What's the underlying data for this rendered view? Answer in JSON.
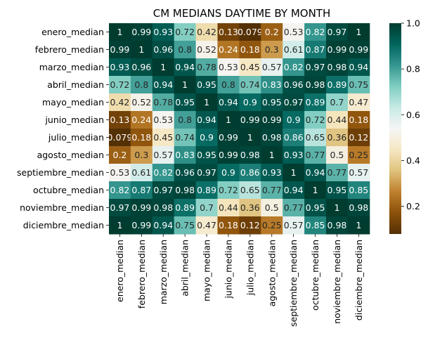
{
  "chart_data": {
    "type": "heatmap",
    "title": "CM MEDIANS DAYTIME BY MONTH",
    "xlabel": "",
    "ylabel": "",
    "labels": [
      "enero_median",
      "febrero_median",
      "marzo_median",
      "abril_median",
      "mayo_median",
      "junio_median",
      "julio_median",
      "agosto_median",
      "septiembre_median",
      "octubre_median",
      "noviembre_median",
      "diciembre_median"
    ],
    "matrix": [
      [
        1,
        0.99,
        0.93,
        0.72,
        0.42,
        0.13,
        0.079,
        0.2,
        0.53,
        0.82,
        0.97,
        1
      ],
      [
        0.99,
        1,
        0.96,
        0.8,
        0.52,
        0.24,
        0.18,
        0.3,
        0.61,
        0.87,
        0.99,
        0.99
      ],
      [
        0.93,
        0.96,
        1,
        0.94,
        0.78,
        0.53,
        0.45,
        0.57,
        0.82,
        0.97,
        0.98,
        0.94
      ],
      [
        0.72,
        0.8,
        0.94,
        1,
        0.95,
        0.8,
        0.74,
        0.83,
        0.96,
        0.98,
        0.89,
        0.75
      ],
      [
        0.42,
        0.52,
        0.78,
        0.95,
        1,
        0.94,
        0.9,
        0.95,
        0.97,
        0.89,
        0.7,
        0.47
      ],
      [
        0.13,
        0.24,
        0.53,
        0.8,
        0.94,
        1,
        0.99,
        0.99,
        0.9,
        0.72,
        0.44,
        0.18
      ],
      [
        0.079,
        0.18,
        0.45,
        0.74,
        0.9,
        0.99,
        1,
        0.98,
        0.86,
        0.65,
        0.36,
        0.12
      ],
      [
        0.2,
        0.3,
        0.57,
        0.83,
        0.95,
        0.99,
        0.98,
        1,
        0.93,
        0.77,
        0.5,
        0.25
      ],
      [
        0.53,
        0.61,
        0.82,
        0.96,
        0.97,
        0.9,
        0.86,
        0.93,
        1,
        0.94,
        0.77,
        0.57
      ],
      [
        0.82,
        0.87,
        0.97,
        0.98,
        0.89,
        0.72,
        0.65,
        0.77,
        0.94,
        1,
        0.95,
        0.85
      ],
      [
        0.97,
        0.99,
        0.98,
        0.89,
        0.7,
        0.44,
        0.36,
        0.5,
        0.77,
        0.95,
        1,
        0.98
      ],
      [
        1,
        0.99,
        0.94,
        0.75,
        0.47,
        0.18,
        0.12,
        0.25,
        0.57,
        0.85,
        0.98,
        1
      ]
    ],
    "colormap": "BrBG",
    "vmin": 0.079,
    "vmax": 1.0,
    "colorbar_ticks": [
      "0.2",
      "0.4",
      "0.6",
      "0.8",
      "1.0"
    ],
    "annotate": true
  }
}
